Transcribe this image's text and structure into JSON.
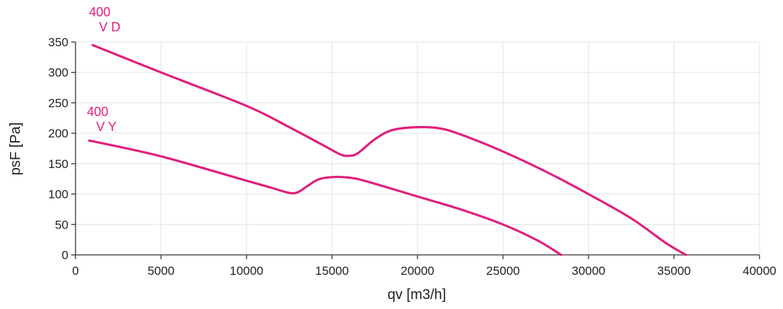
{
  "chart_data": {
    "type": "line",
    "title": "",
    "xlabel": "qv [m3/h]",
    "ylabel": "psF [Pa]",
    "xlim": [
      0,
      40000
    ],
    "ylim": [
      0,
      350
    ],
    "xticks": [
      0,
      5000,
      10000,
      15000,
      20000,
      25000,
      30000,
      35000,
      40000
    ],
    "yticks": [
      0,
      50,
      100,
      150,
      200,
      250,
      300,
      350
    ],
    "grid": true,
    "legend": "none",
    "colors": {
      "series": "#e0207a",
      "grid": "#dde3ec",
      "axis": "#333333",
      "text": "#222222"
    },
    "series": [
      {
        "label_lines": [
          "400",
          "V D"
        ],
        "x": [
          1000,
          5000,
          10000,
          12500,
          14500,
          15500,
          16000,
          16500,
          17500,
          18500,
          20000,
          21500,
          23000,
          25000,
          27500,
          30000,
          32500,
          34500,
          35700
        ],
        "y": [
          345,
          300,
          245,
          210,
          180,
          165,
          163,
          167,
          190,
          205,
          210,
          207,
          193,
          170,
          137,
          100,
          60,
          20,
          0
        ]
      },
      {
        "label_lines": [
          "400",
          "V Y"
        ],
        "x": [
          800,
          5000,
          10000,
          11500,
          12500,
          13000,
          13500,
          14200,
          15000,
          16000,
          17000,
          20000,
          22500,
          25000,
          27000,
          28400
        ],
        "y": [
          188,
          162,
          122,
          110,
          102,
          103,
          112,
          124,
          128,
          127,
          121,
          96,
          75,
          50,
          24,
          0
        ]
      }
    ]
  }
}
